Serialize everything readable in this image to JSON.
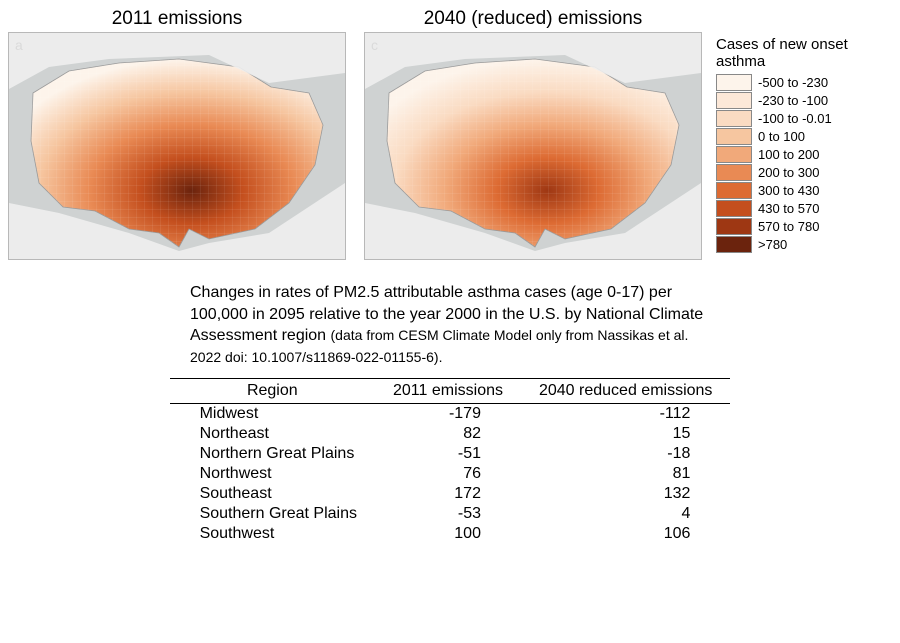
{
  "background_color": "#ffffff",
  "map_sea_color": "#cfd2d2",
  "map_border_color": "#b8b8b8",
  "map_a": {
    "title": "2011 emissions",
    "panel_letter": "a",
    "fill_intensity": "high"
  },
  "map_c": {
    "title": "2040 (reduced) emissions",
    "panel_letter": "c",
    "fill_intensity": "medium"
  },
  "legend": {
    "title": "Cases of new onset asthma",
    "items": [
      {
        "label": "-500 to -230",
        "color": "#fdf4eb"
      },
      {
        "label": "-230 to -100",
        "color": "#fce8d8"
      },
      {
        "label": "-100 to -0.01",
        "color": "#fadbc2"
      },
      {
        "label": "0 to 100",
        "color": "#f6c6a0"
      },
      {
        "label": "100 to 200",
        "color": "#f1a97a"
      },
      {
        "label": "200 to 300",
        "color": "#e98a54"
      },
      {
        "label": "300 to 430",
        "color": "#dd6b33"
      },
      {
        "label": "430 to 570",
        "color": "#c44f1e"
      },
      {
        "label": "570 to 780",
        "color": "#9e3713"
      },
      {
        "label": ">780",
        "color": "#6b230d"
      }
    ]
  },
  "caption": {
    "main": "Changes in rates of PM2.5 attributable asthma cases (age 0-17) per 100,000 in 2095 relative to the year 2000 in the U.S. by National Climate Assessment region",
    "sub": "(data from CESM Climate Model only from Nassikas et al. 2022 doi: 10.1007/s11869-022-01155-6)."
  },
  "table": {
    "columns": [
      "Region",
      "2011 emissions",
      "2040 reduced emissions"
    ],
    "rows": [
      [
        "Midwest",
        "-179",
        "-112"
      ],
      [
        "Northeast",
        "82",
        "15"
      ],
      [
        "Northern Great Plains",
        "-51",
        "-18"
      ],
      [
        "Northwest",
        "76",
        "81"
      ],
      [
        "Southeast",
        "172",
        "132"
      ],
      [
        "Southern Great Plains",
        "-53",
        "4"
      ],
      [
        "Southwest",
        "100",
        "106"
      ]
    ],
    "col_align": [
      "left",
      "right",
      "right"
    ],
    "fontsize": 16
  },
  "palette_note": "Sequential orange-to-dark-brown choropleth; lighter = negative change, darker = higher positive change."
}
